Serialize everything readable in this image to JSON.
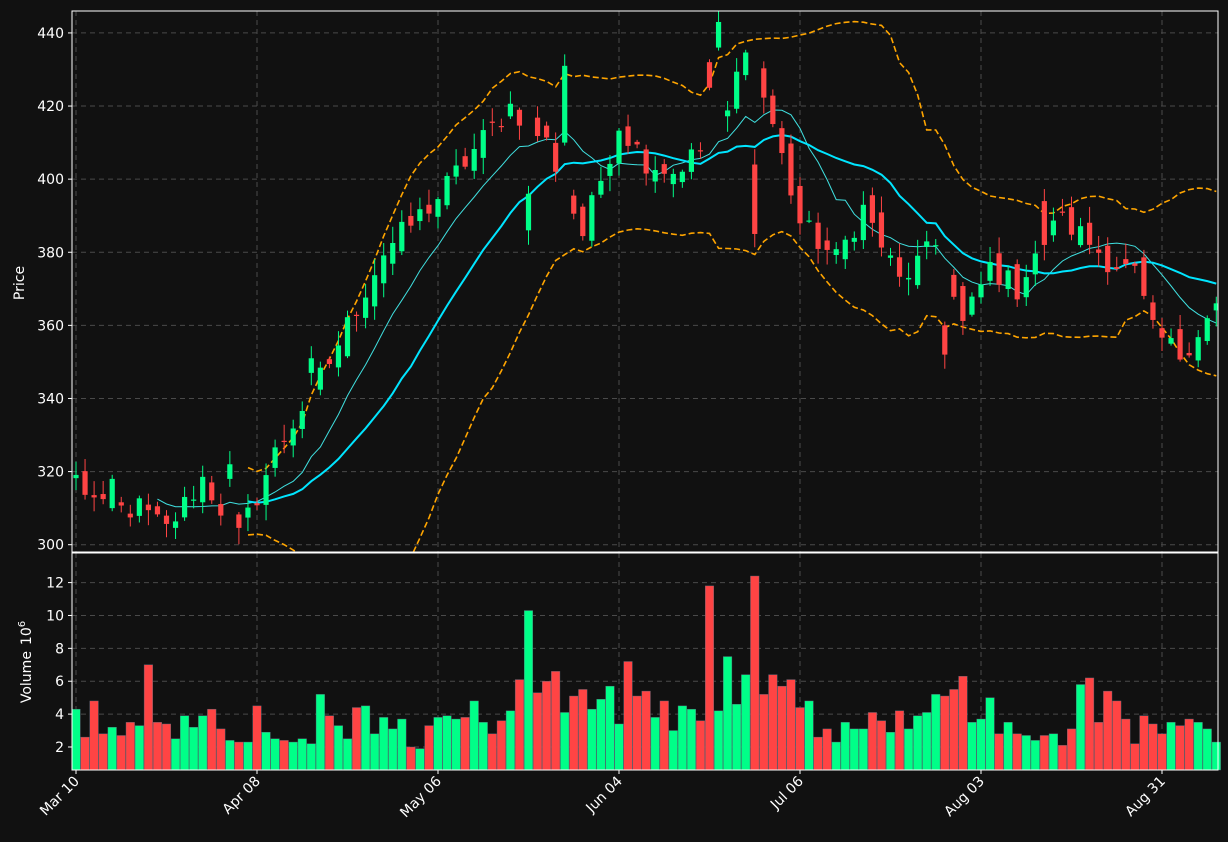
{
  "colors": {
    "background": "#111111",
    "up": "#00ff88",
    "down": "#ff4444",
    "ma_fast": "#40e0e0",
    "ma_slow": "#00e5ff",
    "bollinger": "#ffa500",
    "grid": "#4a4a4a",
    "text": "#ffffff"
  },
  "chart_data": {
    "type": "candlestick",
    "grid": true,
    "price_panel": {
      "ylabel": "Price",
      "ylim": [
        298,
        446
      ],
      "yticks": [
        300,
        320,
        340,
        360,
        380,
        400,
        420,
        440
      ]
    },
    "volume_panel": {
      "ylabel": "Volume",
      "ylabel_exponent": "6",
      "unit_note": "values in millions (10^6)",
      "ylim": [
        0.6,
        13.8
      ],
      "yticks": [
        2,
        4,
        6,
        8,
        10,
        12
      ]
    },
    "x_tick_labels": [
      {
        "label": "Mar 10",
        "index": 0
      },
      {
        "label": "Apr 08",
        "index": 20
      },
      {
        "label": "May 06",
        "index": 40
      },
      {
        "label": "Jun 04",
        "index": 60
      },
      {
        "label": "Jul 06",
        "index": 80
      },
      {
        "label": "Aug 03",
        "index": 100
      },
      {
        "label": "Aug 31",
        "index": 120
      }
    ],
    "n_candles": 127,
    "close_path": [
      [
        0,
        318
      ],
      [
        3,
        309
      ],
      [
        7,
        310
      ],
      [
        10,
        304
      ],
      [
        14,
        318
      ],
      [
        18,
        302
      ],
      [
        22,
        325
      ],
      [
        28,
        350
      ],
      [
        34,
        380
      ],
      [
        40,
        395
      ],
      [
        44,
        408
      ],
      [
        48,
        420
      ],
      [
        52,
        410
      ],
      [
        56,
        385
      ],
      [
        60,
        415
      ],
      [
        63,
        405
      ],
      [
        66,
        402
      ],
      [
        70,
        410
      ],
      [
        72,
        418
      ],
      [
        74,
        438
      ],
      [
        77,
        415
      ],
      [
        80,
        388
      ],
      [
        84,
        378
      ],
      [
        87,
        392
      ],
      [
        91,
        372
      ],
      [
        95,
        382
      ],
      [
        98,
        360
      ],
      [
        101,
        376
      ],
      [
        104,
        370
      ],
      [
        108,
        390
      ],
      [
        111,
        385
      ],
      [
        114,
        378
      ],
      [
        117,
        374
      ],
      [
        119,
        358
      ],
      [
        122,
        352
      ],
      [
        126,
        365
      ]
    ],
    "spikes": [
      {
        "index": 4,
        "close": 318,
        "open": 310,
        "direction": "down"
      },
      {
        "index": 17,
        "close": 322,
        "open": 318,
        "direction": "down"
      },
      {
        "index": 26,
        "close": 351,
        "open": 347,
        "direction": "down"
      },
      {
        "index": 50,
        "close": 396,
        "open": 386,
        "direction": "down"
      },
      {
        "index": 54,
        "close": 431,
        "open": 410,
        "direction": "down"
      },
      {
        "index": 70,
        "close": 425,
        "open": 432,
        "direction": "down"
      },
      {
        "index": 71,
        "close": 443,
        "open": 436,
        "direction": "up"
      },
      {
        "index": 75,
        "close": 385,
        "open": 404,
        "direction": "down"
      },
      {
        "index": 96,
        "close": 352,
        "open": 360,
        "direction": "down"
      },
      {
        "index": 107,
        "close": 382,
        "open": 394,
        "direction": "down"
      }
    ],
    "ma_fast_window": 10,
    "ma_slow_window": 20,
    "bollinger_k": 2,
    "volume_millions": [
      4.3,
      2.6,
      4.8,
      2.8,
      3.2,
      2.7,
      3.5,
      3.3,
      7.0,
      3.5,
      3.4,
      2.5,
      3.9,
      3.2,
      3.9,
      4.3,
      3.1,
      2.4,
      2.3,
      2.3,
      4.5,
      2.9,
      2.5,
      2.4,
      2.3,
      2.5,
      2.2,
      5.2,
      3.9,
      3.3,
      2.5,
      4.4,
      4.5,
      2.8,
      3.8,
      3.1,
      3.7,
      2.0,
      1.9,
      3.3,
      3.8,
      3.9,
      3.7,
      3.8,
      4.8,
      3.5,
      2.8,
      3.6,
      4.2,
      6.1,
      10.3,
      5.3,
      6.0,
      6.6,
      4.1,
      5.1,
      5.5,
      4.3,
      4.9,
      5.7,
      3.4,
      7.2,
      5.1,
      5.4,
      3.8,
      4.8,
      3.0,
      4.5,
      4.3,
      3.6,
      11.8,
      4.2,
      7.5,
      4.6,
      6.4,
      12.4,
      5.2,
      6.4,
      5.7,
      6.1,
      4.4,
      4.8,
      2.6,
      3.1,
      2.3,
      3.5,
      3.1,
      3.1,
      4.1,
      3.6,
      2.9,
      4.2,
      3.1,
      3.9,
      4.1,
      5.2,
      5.1,
      5.5,
      6.3,
      3.5,
      3.7,
      5.0,
      2.8,
      3.5,
      2.8,
      2.7,
      2.4,
      2.7,
      2.8,
      2.1,
      3.1,
      5.8,
      6.2,
      3.5,
      5.4,
      4.8,
      3.7,
      2.2,
      3.9,
      3.4,
      2.8,
      3.5,
      3.3,
      3.7,
      3.5,
      3.1,
      2.3
    ]
  }
}
